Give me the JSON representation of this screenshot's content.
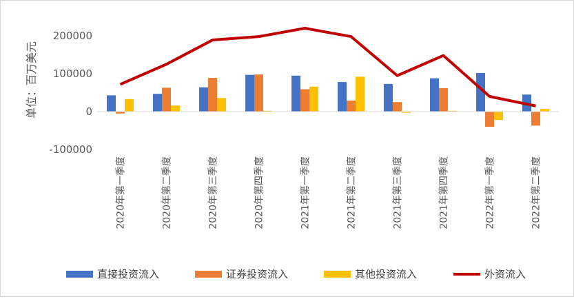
{
  "chart_data": {
    "type": "bar",
    "ylabel": "单位：百万美元",
    "ylim": [
      -100000,
      200000
    ],
    "yticks": [
      "200000",
      "100000",
      "0",
      "-100000"
    ],
    "ytick_values": [
      200000,
      100000,
      0,
      -100000
    ],
    "grid": false,
    "legend_position": "bottom",
    "categories": [
      "2020年第一季度",
      "2020年第二季度",
      "2020年第三季度",
      "2020年第四季度",
      "2021年第一季度",
      "2021年第二季度",
      "2021年第三季度",
      "2021年第四季度",
      "2022年第一季度",
      "2022年第二季度"
    ],
    "series": [
      {
        "name": "直接投资流入",
        "kind": "bar",
        "color": "#4472c4",
        "values": [
          43000,
          47000,
          64000,
          97000,
          95000,
          78000,
          73000,
          88000,
          102000,
          45000
        ]
      },
      {
        "name": "证券投资流入",
        "kind": "bar",
        "color": "#ed7d31",
        "values": [
          -5000,
          63000,
          89000,
          98000,
          59000,
          29000,
          25000,
          62000,
          -40000,
          -37000
        ]
      },
      {
        "name": "其他投资流入",
        "kind": "bar",
        "color": "#ffc000",
        "values": [
          33000,
          16000,
          36000,
          2000,
          66000,
          92000,
          -3000,
          2000,
          -22000,
          7000
        ]
      },
      {
        "name": "外资流入",
        "kind": "line",
        "color": "#c00000",
        "values": [
          72000,
          125000,
          189000,
          198000,
          220000,
          198000,
          95000,
          148000,
          40000,
          15000
        ]
      }
    ]
  }
}
